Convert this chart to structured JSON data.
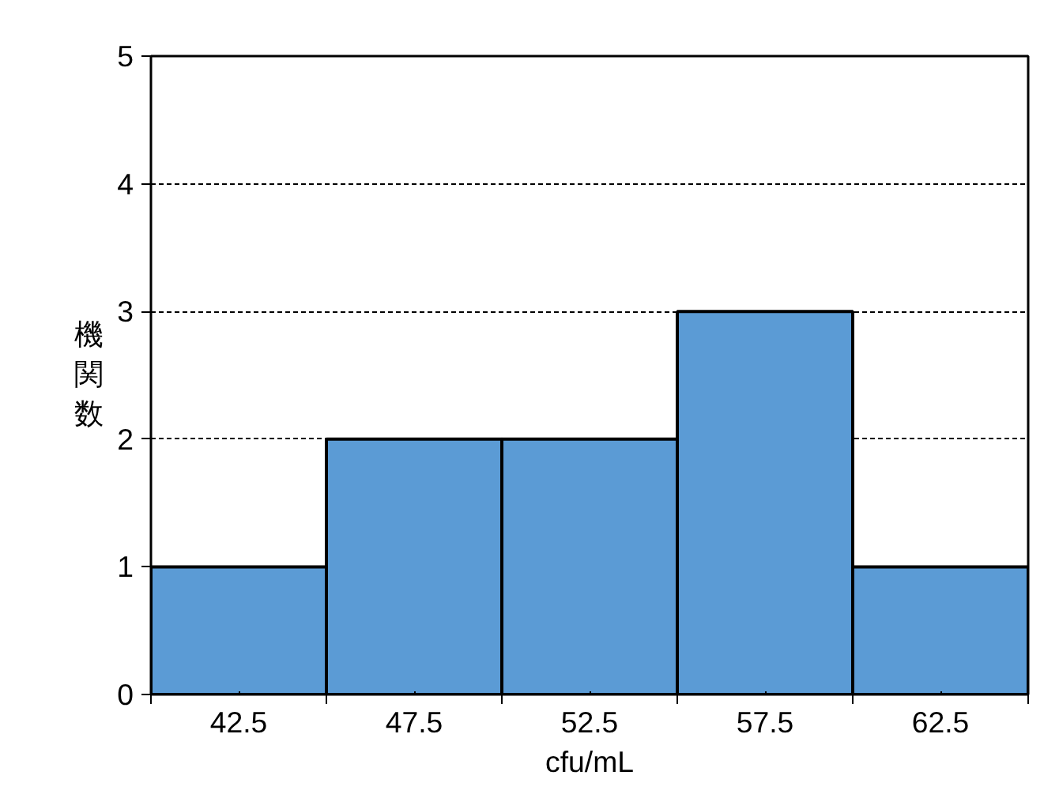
{
  "chart_data": {
    "type": "histogram",
    "xlabel": "cfu/mL",
    "ylabel": "機関数",
    "bins": [
      40,
      45,
      50,
      55,
      60,
      65
    ],
    "values": [
      1,
      2,
      2,
      3,
      1
    ],
    "color": "#5b9bd5",
    "xlim": [
      40,
      65
    ],
    "xticks": [
      {
        "value": 40,
        "label": null
      },
      {
        "value": 42.5,
        "label": "42.5"
      },
      {
        "value": 45,
        "label": null
      },
      {
        "value": 47.5,
        "label": "47.5"
      },
      {
        "value": 50,
        "label": null
      },
      {
        "value": 52.5,
        "label": "52.5"
      },
      {
        "value": 55,
        "label": null
      },
      {
        "value": 57.5,
        "label": "57.5"
      },
      {
        "value": 60,
        "label": null
      },
      {
        "value": 62.5,
        "label": "62.5"
      },
      {
        "value": 65,
        "label": null
      }
    ],
    "ylim": [
      0,
      5
    ],
    "yticks": [
      0,
      1,
      2,
      3,
      4,
      5
    ],
    "grid": "y"
  }
}
